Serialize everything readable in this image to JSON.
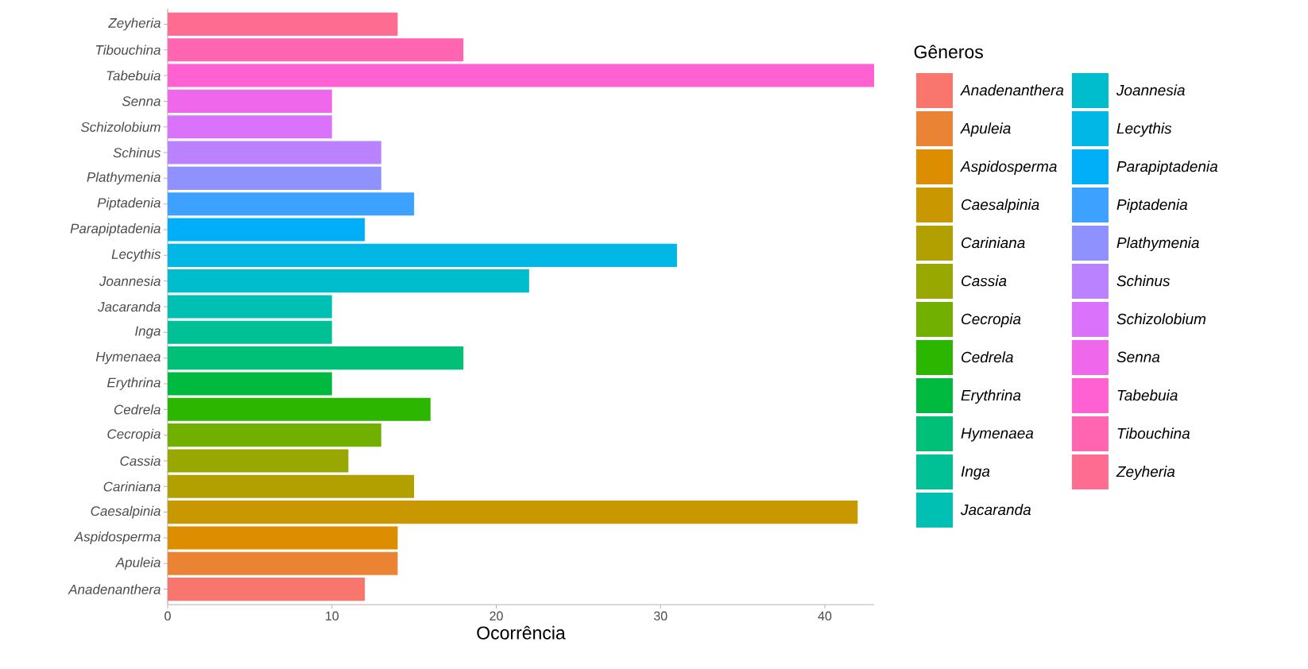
{
  "chart_data": {
    "type": "bar",
    "orientation": "horizontal",
    "xlabel": "Ocorrência",
    "legend_title": "Gêneros",
    "legend": "right",
    "categories": [
      "Zeyheria",
      "Tibouchina",
      "Tabebuia",
      "Senna",
      "Schizolobium",
      "Schinus",
      "Plathymenia",
      "Piptadenia",
      "Parapiptadenia",
      "Lecythis",
      "Joannesia",
      "Jacaranda",
      "Inga",
      "Hymenaea",
      "Erythrina",
      "Cedrela",
      "Cecropia",
      "Cassia",
      "Cariniana",
      "Caesalpinia",
      "Aspidosperma",
      "Apuleia",
      "Anadenanthera"
    ],
    "series": [
      {
        "name": "Anadenanthera",
        "color": "#F8766D",
        "values": [
          null,
          null,
          null,
          null,
          null,
          null,
          null,
          null,
          null,
          null,
          null,
          null,
          null,
          null,
          null,
          null,
          null,
          null,
          null,
          null,
          null,
          null,
          12
        ]
      },
      {
        "name": "Apuleia",
        "color": "#EB8335",
        "values": [
          null,
          null,
          null,
          null,
          null,
          null,
          null,
          null,
          null,
          null,
          null,
          null,
          null,
          null,
          null,
          null,
          null,
          null,
          null,
          null,
          null,
          14,
          null
        ]
      },
      {
        "name": "Aspidosperma",
        "color": "#DC8D00",
        "values": [
          null,
          null,
          null,
          null,
          null,
          null,
          null,
          null,
          null,
          null,
          null,
          null,
          null,
          null,
          null,
          null,
          null,
          null,
          null,
          null,
          14,
          null,
          null
        ]
      },
      {
        "name": "Caesalpinia",
        "color": "#C99800",
        "values": [
          null,
          null,
          null,
          null,
          null,
          null,
          null,
          null,
          null,
          null,
          null,
          null,
          null,
          null,
          null,
          null,
          null,
          null,
          null,
          42,
          null,
          null,
          null
        ]
      },
      {
        "name": "Cariniana",
        "color": "#B2A000",
        "values": [
          null,
          null,
          null,
          null,
          null,
          null,
          null,
          null,
          null,
          null,
          null,
          null,
          null,
          null,
          null,
          null,
          null,
          null,
          15,
          null,
          null,
          null,
          null
        ]
      },
      {
        "name": "Cassia",
        "color": "#99A800",
        "values": [
          null,
          null,
          null,
          null,
          null,
          null,
          null,
          null,
          null,
          null,
          null,
          null,
          null,
          null,
          null,
          null,
          null,
          11,
          null,
          null,
          null,
          null,
          null
        ]
      },
      {
        "name": "Cecropia",
        "color": "#72B000",
        "values": [
          null,
          null,
          null,
          null,
          null,
          null,
          null,
          null,
          null,
          null,
          null,
          null,
          null,
          null,
          null,
          null,
          13,
          null,
          null,
          null,
          null,
          null,
          null
        ]
      },
      {
        "name": "Cedrela",
        "color": "#2DB600",
        "values": [
          null,
          null,
          null,
          null,
          null,
          null,
          null,
          null,
          null,
          null,
          null,
          null,
          null,
          null,
          null,
          16,
          null,
          null,
          null,
          null,
          null,
          null,
          null
        ]
      },
      {
        "name": "Erythrina",
        "color": "#00BA3F",
        "values": [
          null,
          null,
          null,
          null,
          null,
          null,
          null,
          null,
          null,
          null,
          null,
          null,
          null,
          null,
          10,
          null,
          null,
          null,
          null,
          null,
          null,
          null,
          null
        ]
      },
      {
        "name": "Hymenaea",
        "color": "#00BF76",
        "values": [
          null,
          null,
          null,
          null,
          null,
          null,
          null,
          null,
          null,
          null,
          null,
          null,
          null,
          18,
          null,
          null,
          null,
          null,
          null,
          null,
          null,
          null,
          null
        ]
      },
      {
        "name": "Inga",
        "color": "#00C196",
        "values": [
          null,
          null,
          null,
          null,
          null,
          null,
          null,
          null,
          null,
          null,
          null,
          null,
          10,
          null,
          null,
          null,
          null,
          null,
          null,
          null,
          null,
          null,
          null
        ]
      },
      {
        "name": "Jacaranda",
        "color": "#00C0B3",
        "values": [
          null,
          null,
          null,
          null,
          null,
          null,
          null,
          null,
          null,
          null,
          null,
          10,
          null,
          null,
          null,
          null,
          null,
          null,
          null,
          null,
          null,
          null,
          null
        ]
      },
      {
        "name": "Joannesia",
        "color": "#00BDCD",
        "values": [
          null,
          null,
          null,
          null,
          null,
          null,
          null,
          null,
          null,
          null,
          22,
          null,
          null,
          null,
          null,
          null,
          null,
          null,
          null,
          null,
          null,
          null,
          null
        ]
      },
      {
        "name": "Lecythis",
        "color": "#00B7E5",
        "values": [
          null,
          null,
          null,
          null,
          null,
          null,
          null,
          null,
          null,
          31,
          null,
          null,
          null,
          null,
          null,
          null,
          null,
          null,
          null,
          null,
          null,
          null,
          null
        ]
      },
      {
        "name": "Parapiptadenia",
        "color": "#00AFF8",
        "values": [
          null,
          null,
          null,
          null,
          null,
          null,
          null,
          null,
          12,
          null,
          null,
          null,
          null,
          null,
          null,
          null,
          null,
          null,
          null,
          null,
          null,
          null,
          null
        ]
      },
      {
        "name": "Piptadenia",
        "color": "#3DA1FF",
        "values": [
          null,
          null,
          null,
          null,
          null,
          null,
          null,
          15,
          null,
          null,
          null,
          null,
          null,
          null,
          null,
          null,
          null,
          null,
          null,
          null,
          null,
          null,
          null
        ]
      },
      {
        "name": "Plathymenia",
        "color": "#8F91FF",
        "values": [
          null,
          null,
          null,
          null,
          null,
          null,
          13,
          null,
          null,
          null,
          null,
          null,
          null,
          null,
          null,
          null,
          null,
          null,
          null,
          null,
          null,
          null,
          null
        ]
      },
      {
        "name": "Schinus",
        "color": "#BB82FF",
        "values": [
          null,
          null,
          null,
          null,
          null,
          13,
          null,
          null,
          null,
          null,
          null,
          null,
          null,
          null,
          null,
          null,
          null,
          null,
          null,
          null,
          null,
          null,
          null
        ]
      },
      {
        "name": "Schizolobium",
        "color": "#DB72FB",
        "values": [
          null,
          null,
          null,
          null,
          10,
          null,
          null,
          null,
          null,
          null,
          null,
          null,
          null,
          null,
          null,
          null,
          null,
          null,
          null,
          null,
          null,
          null,
          null
        ]
      },
      {
        "name": "Senna",
        "color": "#EF67EB",
        "values": [
          null,
          null,
          null,
          10,
          null,
          null,
          null,
          null,
          null,
          null,
          null,
          null,
          null,
          null,
          null,
          null,
          null,
          null,
          null,
          null,
          null,
          null,
          null
        ]
      },
      {
        "name": "Tabebuia",
        "color": "#FF61D2",
        "values": [
          null,
          null,
          43,
          null,
          null,
          null,
          null,
          null,
          null,
          null,
          null,
          null,
          null,
          null,
          null,
          null,
          null,
          null,
          null,
          null,
          null,
          null,
          null
        ]
      },
      {
        "name": "Tibouchina",
        "color": "#FF65B1",
        "values": [
          null,
          18,
          null,
          null,
          null,
          null,
          null,
          null,
          null,
          null,
          null,
          null,
          null,
          null,
          null,
          null,
          null,
          null,
          null,
          null,
          null,
          null,
          null
        ]
      },
      {
        "name": "Zeyheria",
        "color": "#FF6C91",
        "values": [
          14,
          null,
          null,
          null,
          null,
          null,
          null,
          null,
          null,
          null,
          null,
          null,
          null,
          null,
          null,
          null,
          null,
          null,
          null,
          null,
          null,
          null,
          null
        ]
      }
    ],
    "xlim": [
      0,
      43
    ],
    "xticks": [
      0,
      10,
      20,
      30,
      40
    ]
  }
}
